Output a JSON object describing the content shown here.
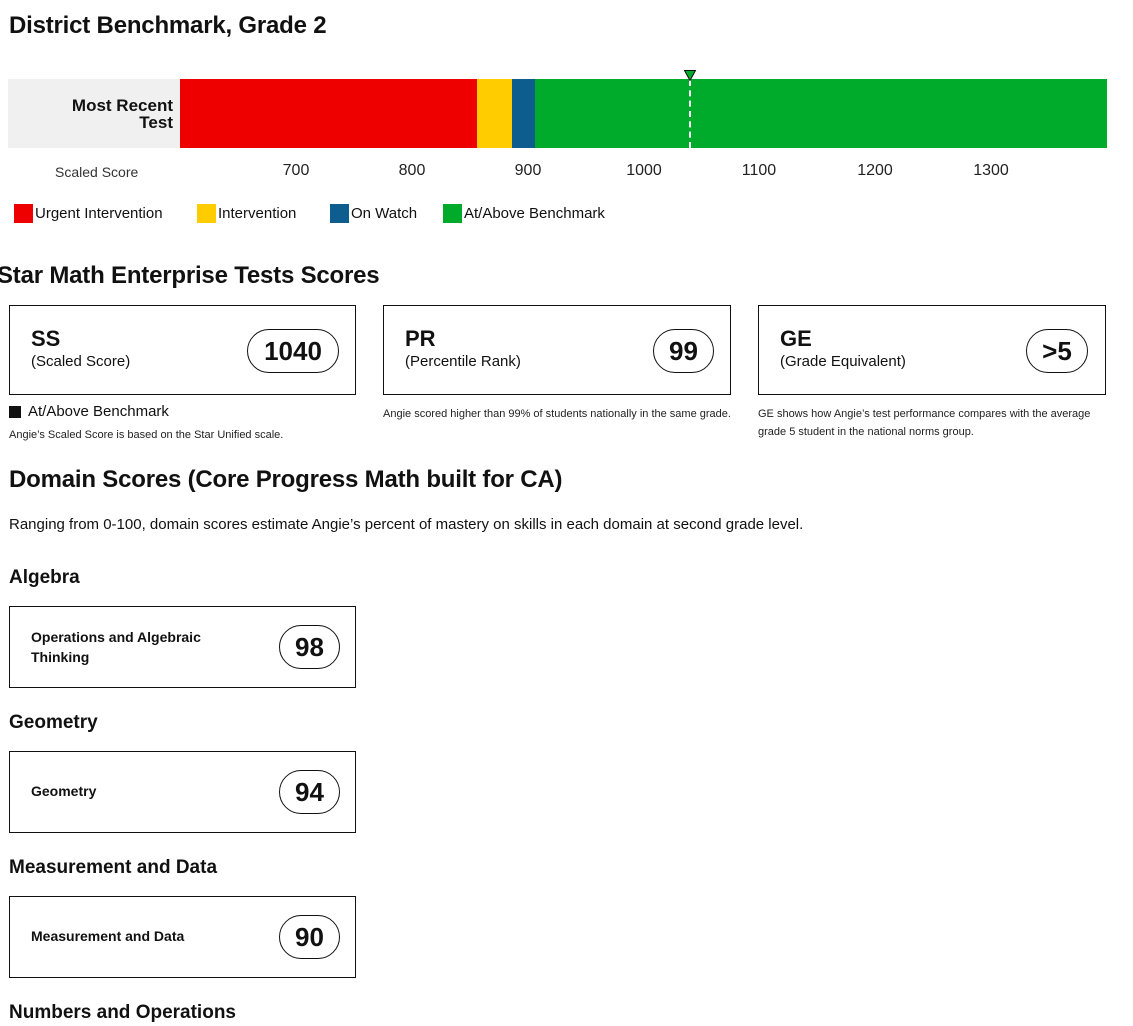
{
  "benchmark": {
    "title": "District Benchmark, Grade 2",
    "row_label_line1": "Most Recent",
    "row_label_line2": "Test",
    "scale_label": "Scaled Score",
    "ticks": [
      "700",
      "800",
      "900",
      "1000",
      "1100",
      "1200",
      "1300"
    ],
    "bands": [
      {
        "name": "Urgent Intervention",
        "color": "#ee0000"
      },
      {
        "name": "Intervention",
        "color": "#ffcc00"
      },
      {
        "name": "On Watch",
        "color": "#0d5e8e"
      },
      {
        "name": "At/Above Benchmark",
        "color": "#00aa2b"
      }
    ],
    "marker_score": 1040
  },
  "scores": {
    "title": "Star Math Enterprise Tests Scores",
    "cards": [
      {
        "abbr": "SS",
        "name": "(Scaled Score)",
        "value": "1040"
      },
      {
        "abbr": "PR",
        "name": "(Percentile Rank)",
        "value": "99"
      },
      {
        "abbr": "GE",
        "name": "(Grade Equivalent)",
        "value": ">5"
      }
    ],
    "ss_benchmark": "At/Above Benchmark",
    "ss_note": "Angie’s Scaled Score is based on the Star Unified scale.",
    "pr_note": "Angie scored higher than 99% of students nationally in the same grade.",
    "ge_note": "GE shows how Angie’s test performance compares with the average grade 5 student in the national norms group."
  },
  "domains": {
    "title": "Domain Scores (Core Progress Math built for CA)",
    "description": "Ranging from 0-100, domain scores estimate Angie’s percent of mastery on skills in each domain at second grade level.",
    "groups": [
      {
        "heading": "Algebra",
        "item_line1": "Operations and Algebraic",
        "item_line2": "Thinking",
        "score": "98"
      },
      {
        "heading": "Geometry",
        "item_line1": "Geometry",
        "item_line2": "",
        "score": "94"
      },
      {
        "heading": "Measurement and Data",
        "item_line1": "Measurement and Data",
        "item_line2": "",
        "score": "90"
      },
      {
        "heading": "Numbers and Operations"
      }
    ]
  }
}
